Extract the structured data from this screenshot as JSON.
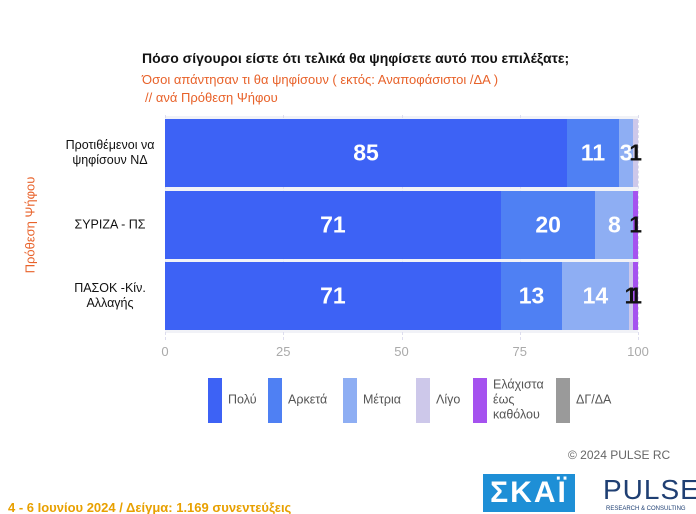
{
  "chart_data": {
    "type": "stacked-bar-horizontal",
    "title": "Πόσο σίγουροι είστε ότι τελικά θα ψηφίσετε αυτό που επιλέξατε;",
    "subtitle": "Όσοι απάντησαν τι θα ψηφίσουν ( εκτός: Αναποφάσιστοι /ΔΑ )",
    "subtitle2": "// ανά Πρόθεση Ψήφου",
    "y_label": "Πρόθεση Ψήφου",
    "categories": [
      "Προτιθέμενοι να ψηφίσουν ΝΔ",
      "ΣΥΡΙΖΑ - ΠΣ",
      "ΠΑΣΟΚ -Κίν. Αλλαγής"
    ],
    "series": [
      {
        "name": "Πολύ",
        "color": "#3d62f5",
        "values": [
          85,
          71,
          71
        ]
      },
      {
        "name": "Αρκετά",
        "color": "#4f80f3",
        "values": [
          11,
          20,
          13
        ]
      },
      {
        "name": "Μέτρια",
        "color": "#8eaef3",
        "values": [
          3,
          8,
          14
        ]
      },
      {
        "name": "Λίγο",
        "color": "#cdc8ea",
        "values": [
          1,
          0,
          1
        ]
      },
      {
        "name": "Ελάχιστα έως καθόλου",
        "color": "#a552ef",
        "values": [
          0,
          1,
          1
        ]
      },
      {
        "name": "ΔΓ/ΔΑ",
        "color": "#9a9a9a",
        "values": [
          0,
          0,
          0
        ]
      }
    ],
    "xlim": [
      0,
      100
    ],
    "xticks": [
      0,
      25,
      50,
      75,
      100
    ],
    "copyright": "© 2024 PULSE RC",
    "footer": "4 - 6 Ιουνίου 2024  /  Δείγμα:  1.169 συνεντεύξεις",
    "logo1": "ΣΚΑΪ",
    "logo2": "PULSE",
    "logo2_sub": "RESEARCH & CONSULTING"
  }
}
